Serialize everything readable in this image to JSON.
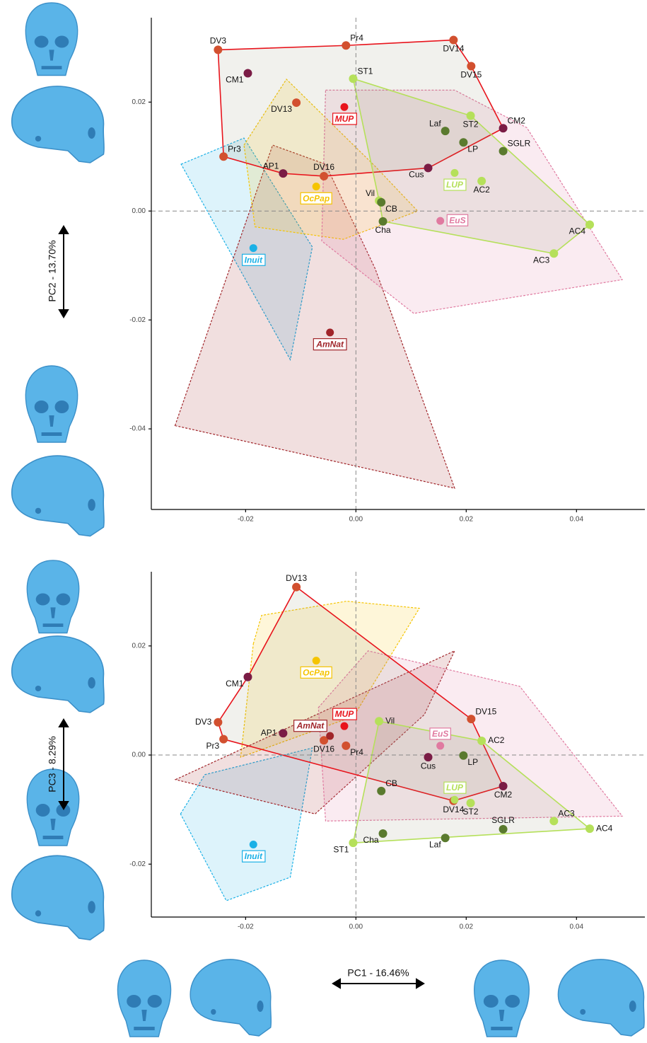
{
  "chart_data": [
    {
      "type": "scatter",
      "y_label": "PC2 - 13.70%",
      "xlim": [
        -0.0371,
        0.0524
      ],
      "ylim": [
        -0.0548,
        0.0355
      ],
      "xticks": [
        -0.02,
        {
          "value": 0,
          "label": "0.00"
        },
        0.02,
        0.04
      ],
      "yticks": [
        0.02,
        {
          "value": 0,
          "label": "0.00"
        },
        -0.02,
        -0.04
      ],
      "zero_lines": true,
      "groups": [
        {
          "name": "Inuit",
          "color": "#1ab0e6",
          "x": -0.0186,
          "y": -0.0068,
          "anchor": "s",
          "dashed": true,
          "hull": {
            "x": [
              -0.0317,
              -0.0203,
              -0.0079,
              -0.0119
            ],
            "y": [
              0.0086,
              0.0134,
              -0.0066,
              -0.0273
            ]
          }
        },
        {
          "name": "AmNat",
          "color": "#a0252a",
          "x": -0.0047,
          "y": -0.0223,
          "anchor": "s",
          "dashed": true,
          "hull": {
            "x": [
              -0.0328,
              -0.0151,
              -0.0055,
              0.0035,
              0.0179
            ],
            "y": [
              -0.0394,
              0.0121,
              0.0086,
              -0.0106,
              -0.0509
            ]
          }
        },
        {
          "name": "OcPap",
          "color": "#f5c400",
          "x": -0.0072,
          "y": 0.0045,
          "anchor": "s",
          "dashed": true,
          "hull": {
            "x": [
              -0.0203,
              -0.0126,
              0.0035,
              0.0112,
              -0.0023,
              -0.0183
            ],
            "y": [
              0.0121,
              0.0242,
              0.0082,
              0,
              -0.0052,
              -0.0029
            ]
          }
        },
        {
          "name": "EuS",
          "color": "#e07aa0",
          "x": 0.0153,
          "y": -0.0018,
          "anchor": "e",
          "dashed": true,
          "hull": {
            "x": [
              -0.0055,
              0.0179,
              0.031,
              0.0483,
              0.0105,
              -0.0062
            ],
            "y": [
              0.0222,
              0.0222,
              0.0153,
              -0.0126,
              -0.0188,
              -0.0055
            ]
          }
        },
        {
          "name": "MUP",
          "color": "#e8141c",
          "x": -0.0021,
          "y": 0.0191,
          "anchor": "s",
          "dashed": false,
          "hull": {
            "x": [
              -0.025,
              -0.0018,
              0.0177,
              0.0209,
              0.0267,
              0.0131,
              -0.0058,
              -0.0132,
              -0.024
            ],
            "y": [
              0.0296,
              0.0304,
              0.0314,
              0.0266,
              0.0152,
              0.0079,
              0.0064,
              0.0069,
              0.01
            ]
          }
        },
        {
          "name": "LUP",
          "color": "#b5e05a",
          "x": 0.0179,
          "y": 0.007,
          "anchor": "s",
          "dashed": false,
          "hull": {
            "x": [
              -0.0005,
              0.0208,
              0.0424,
              0.0359,
              0.0049,
              0.0042
            ],
            "y": [
              0.0243,
              0.0175,
              -0.0025,
              -0.0078,
              -0.0019,
              0.0019
            ]
          }
        }
      ],
      "points": [
        {
          "name": "DV3",
          "x": -0.025,
          "y": 0.0296,
          "color": "#d2502f",
          "anchor": "n"
        },
        {
          "name": "Pr4",
          "x": -0.0018,
          "y": 0.0304,
          "color": "#d2502f",
          "anchor": "ne"
        },
        {
          "name": "DV14",
          "x": 0.0177,
          "y": 0.0314,
          "color": "#d2502f",
          "anchor": "s"
        },
        {
          "name": "DV15",
          "x": 0.0209,
          "y": 0.0266,
          "color": "#d2502f",
          "anchor": "s"
        },
        {
          "name": "CM2",
          "x": 0.0267,
          "y": 0.0152,
          "color": "#7a1c45",
          "anchor": "ne"
        },
        {
          "name": "DV16",
          "x": -0.0058,
          "y": 0.0064,
          "color": "#d2502f",
          "anchor": "n"
        },
        {
          "name": "Pr3",
          "x": -0.024,
          "y": 0.01,
          "color": "#d2502f",
          "anchor": "ne"
        },
        {
          "name": "DV13",
          "x": -0.0108,
          "y": 0.0199,
          "color": "#d2502f",
          "anchor": "sw"
        },
        {
          "name": "Cus",
          "x": 0.0131,
          "y": 0.0079,
          "color": "#7a1c45",
          "anchor": "sw"
        },
        {
          "name": "AP1",
          "x": -0.0132,
          "y": 0.0069,
          "color": "#7a1c45",
          "anchor": "nw"
        },
        {
          "name": "CM1",
          "x": -0.0196,
          "y": 0.0253,
          "color": "#7a1c45",
          "anchor": "sw"
        },
        {
          "name": "ST1",
          "x": -0.0005,
          "y": 0.0243,
          "color": "#b5e05a",
          "anchor": "ne"
        },
        {
          "name": "ST2",
          "x": 0.0208,
          "y": 0.0175,
          "color": "#b5e05a",
          "anchor": "s"
        },
        {
          "name": "AC4",
          "x": 0.0424,
          "y": -0.0025,
          "color": "#b5e05a",
          "anchor": "sw"
        },
        {
          "name": "AC3",
          "x": 0.0359,
          "y": -0.0078,
          "color": "#b5e05a",
          "anchor": "sw"
        },
        {
          "name": "AC2",
          "x": 0.0228,
          "y": 0.0055,
          "color": "#b5e05a",
          "anchor": "s"
        },
        {
          "name": "Vil",
          "x": 0.0042,
          "y": 0.0019,
          "color": "#b5e05a",
          "anchor": "nw"
        },
        {
          "name": "Laf",
          "x": 0.0162,
          "y": 0.0147,
          "color": "#5a7a2e",
          "anchor": "nw"
        },
        {
          "name": "LP",
          "x": 0.0195,
          "y": 0.0126,
          "color": "#5a7a2e",
          "anchor": "se"
        },
        {
          "name": "SGLR",
          "x": 0.0267,
          "y": 0.011,
          "color": "#5a7a2e",
          "anchor": "ne"
        },
        {
          "name": "CB",
          "x": 0.0046,
          "y": 0.0016,
          "color": "#5a7a2e",
          "anchor": "se"
        },
        {
          "name": "Cha",
          "x": 0.0049,
          "y": -0.0019,
          "color": "#5a7a2e",
          "anchor": "s"
        }
      ]
    },
    {
      "type": "scatter",
      "y_label": "PC3 - 8.29%",
      "x_label": "PC1 - 16.46%",
      "xlim": [
        -0.0371,
        0.0524
      ],
      "ylim": [
        -0.0297,
        0.0336
      ],
      "xticks": [
        -0.02,
        {
          "value": 0,
          "label": "0.00"
        },
        0.02,
        0.04
      ],
      "yticks": [
        0.02,
        {
          "value": 0,
          "label": "0.00"
        },
        -0.02
      ],
      "zero_lines": true,
      "groups": [
        {
          "name": "Inuit",
          "color": "#1ab0e6",
          "x": -0.0186,
          "y": -0.0164,
          "anchor": "s",
          "dashed": true,
          "hull": {
            "x": [
              -0.0318,
              -0.0274,
              -0.0079,
              -0.0119,
              -0.0235
            ],
            "y": [
              -0.0108,
              -0.0036,
              0.0013,
              -0.0224,
              -0.0267
            ]
          }
        },
        {
          "name": "OcPap",
          "color": "#f5c400",
          "x": -0.0072,
          "y": 0.0173,
          "anchor": "s",
          "dashed": true,
          "hull": {
            "x": [
              -0.0186,
              -0.0171,
              -0.0017,
              0.0115,
              -0.0004,
              -0.0209
            ],
            "y": [
              0.0204,
              0.0256,
              0.0282,
              0.0269,
              0.0071,
              -0.0004
            ]
          }
        },
        {
          "name": "AmNat",
          "color": "#a0252a",
          "x": -0.0047,
          "y": 0.0035,
          "anchor": "nw",
          "dashed": true,
          "hull": {
            "x": [
              -0.0327,
              0.0179,
              0.0124,
              -0.0074
            ],
            "y": [
              -0.0045,
              0.0191,
              0.0074,
              -0.0108
            ]
          }
        },
        {
          "name": "EuS",
          "color": "#e07aa0",
          "x": 0.0153,
          "y": 0.0017,
          "anchor": "n",
          "dashed": true,
          "hull": {
            "x": [
              -0.0068,
              0.0022,
              0.0297,
              0.0483,
              -0.0055
            ],
            "y": [
              0.0087,
              0.0191,
              0.0126,
              -0.0112,
              -0.0121
            ]
          }
        },
        {
          "name": "MUP",
          "color": "#e8141c",
          "x": -0.0021,
          "y": 0.0053,
          "anchor": "n",
          "dashed": false,
          "hull": {
            "x": [
              -0.0108,
              0.0209,
              0.0267,
              0.0177,
              -0.024,
              -0.025,
              -0.0196
            ],
            "y": [
              0.0308,
              0.0066,
              -0.0057,
              -0.0084,
              0.0029,
              0.006,
              0.0143
            ]
          }
        },
        {
          "name": "LUP",
          "color": "#b5e05a",
          "x": 0.0179,
          "y": -0.0082,
          "anchor": "n",
          "dashed": false,
          "hull": {
            "x": [
              0.0042,
              0.0228,
              0.0424,
              -0.0005
            ],
            "y": [
              0.0062,
              0.0026,
              -0.0135,
              -0.0161
            ]
          }
        }
      ],
      "points": [
        {
          "name": "DV13",
          "x": -0.0108,
          "y": 0.0308,
          "color": "#d2502f",
          "anchor": "n"
        },
        {
          "name": "CM1",
          "x": -0.0196,
          "y": 0.0143,
          "color": "#7a1c45",
          "anchor": "sw"
        },
        {
          "name": "AP1",
          "x": -0.0132,
          "y": 0.004,
          "color": "#7a1c45",
          "anchor": "w"
        },
        {
          "name": "DV3",
          "x": -0.025,
          "y": 0.006,
          "color": "#d2502f",
          "anchor": "w"
        },
        {
          "name": "Pr3",
          "x": -0.024,
          "y": 0.0029,
          "color": "#d2502f",
          "anchor": "sw"
        },
        {
          "name": "DV16",
          "x": -0.0058,
          "y": 0.0027,
          "color": "#d2502f",
          "anchor": "s"
        },
        {
          "name": "Pr4",
          "x": -0.0018,
          "y": 0.0017,
          "color": "#d2502f",
          "anchor": "se"
        },
        {
          "name": "Cus",
          "x": 0.0131,
          "y": -0.0004,
          "color": "#7a1c45",
          "anchor": "s"
        },
        {
          "name": "DV15",
          "x": 0.0209,
          "y": 0.0066,
          "color": "#d2502f",
          "anchor": "ne"
        },
        {
          "name": "CM2",
          "x": 0.0267,
          "y": -0.0057,
          "color": "#7a1c45",
          "anchor": "s"
        },
        {
          "name": "DV14",
          "x": 0.0177,
          "y": -0.0084,
          "color": "#d2502f",
          "anchor": "s"
        },
        {
          "name": "Vil",
          "x": 0.0042,
          "y": 0.0062,
          "color": "#b5e05a",
          "anchor": "e"
        },
        {
          "name": "AC2",
          "x": 0.0228,
          "y": 0.0026,
          "color": "#b5e05a",
          "anchor": "e"
        },
        {
          "name": "LP",
          "x": 0.0195,
          "y": -0.0001,
          "color": "#5a7a2e",
          "anchor": "se"
        },
        {
          "name": "ST2",
          "x": 0.0208,
          "y": -0.0088,
          "color": "#b5e05a",
          "anchor": "s"
        },
        {
          "name": "AC3",
          "x": 0.0359,
          "y": -0.0121,
          "color": "#b5e05a",
          "anchor": "ne"
        },
        {
          "name": "AC4",
          "x": 0.0424,
          "y": -0.0135,
          "color": "#b5e05a",
          "anchor": "e"
        },
        {
          "name": "SGLR",
          "x": 0.0267,
          "y": -0.0136,
          "color": "#5a7a2e",
          "anchor": "n"
        },
        {
          "name": "Laf",
          "x": 0.0162,
          "y": -0.0152,
          "color": "#5a7a2e",
          "anchor": "sw"
        },
        {
          "name": "Cha",
          "x": 0.0049,
          "y": -0.0144,
          "color": "#5a7a2e",
          "anchor": "sw"
        },
        {
          "name": "ST1",
          "x": -0.0005,
          "y": -0.0161,
          "color": "#b5e05a",
          "anchor": "sw"
        },
        {
          "name": "CB",
          "x": 0.0046,
          "y": -0.0066,
          "color": "#5a7a2e",
          "anchor": "ne"
        }
      ]
    }
  ]
}
